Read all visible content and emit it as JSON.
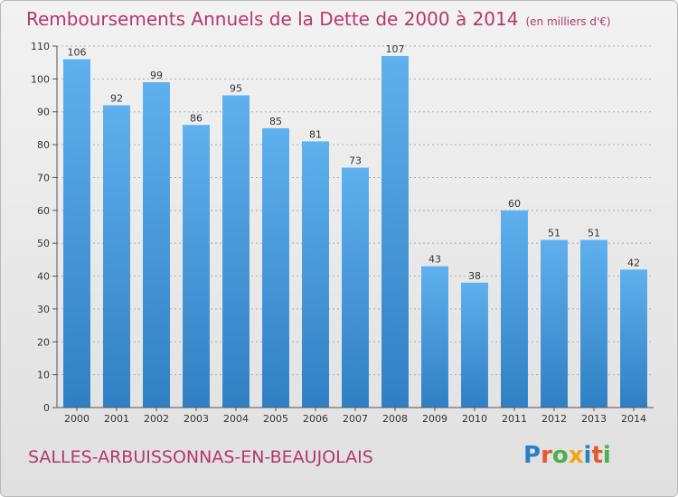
{
  "chart_data": {
    "type": "bar",
    "title": "Remboursements Annuels de la Dette de 2000 à 2014",
    "subtitle": "(en milliers d'€)",
    "categories": [
      "2000",
      "2001",
      "2002",
      "2003",
      "2004",
      "2005",
      "2006",
      "2007",
      "2008",
      "2009",
      "2010",
      "2011",
      "2012",
      "2013",
      "2014"
    ],
    "values": [
      106,
      92,
      99,
      86,
      95,
      85,
      81,
      73,
      107,
      43,
      38,
      60,
      51,
      51,
      42
    ],
    "ylim": [
      0,
      110
    ],
    "yticks": [
      0,
      10,
      20,
      30,
      40,
      50,
      60,
      70,
      80,
      90,
      100,
      110
    ],
    "xlabel": "",
    "ylabel": "",
    "grid": true,
    "bar_color": "#4a9fe0"
  },
  "commune": "SALLES-ARBUISSONNAS-EN-BEAUJOLAIS",
  "logo": {
    "text": "Proxiti",
    "letter_colors": [
      "#2b7fc8",
      "#e8572a",
      "#4caf50",
      "#f2a516",
      "#2b7fc8",
      "#e8572a",
      "#4caf50"
    ]
  },
  "colors": {
    "title": "#b4386a",
    "grid": "#b0b0b0"
  }
}
